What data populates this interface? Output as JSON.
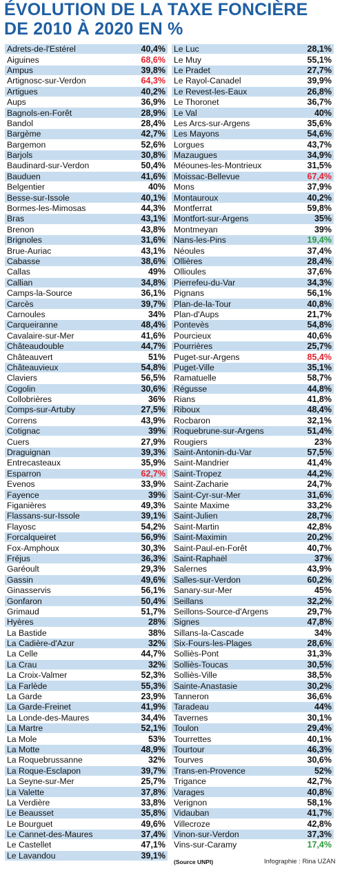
{
  "title": {
    "line1": "ÉVOLUTION DE LA TAXE FONCIÈRE",
    "line2": "DE 2010 À 2020 EN %"
  },
  "colors": {
    "title": "#1f5fa3",
    "shade": "#c7ddef",
    "highlight_high": "#e0222d",
    "highlight_low": "#2e9b3c"
  },
  "left_column": [
    {
      "name": "Adrets-de-l'Estérel",
      "value": "40,4%",
      "shade": true,
      "color": ""
    },
    {
      "name": "Aiguines",
      "value": "68,6%",
      "shade": false,
      "color": "red"
    },
    {
      "name": "Ampus",
      "value": "39,8%",
      "shade": true,
      "color": ""
    },
    {
      "name": "Artignosc-sur-Verdon",
      "value": "64,3%",
      "shade": false,
      "color": "red"
    },
    {
      "name": "Artigues",
      "value": "40,2%",
      "shade": true,
      "color": ""
    },
    {
      "name": "Aups",
      "value": "36,9%",
      "shade": false,
      "color": ""
    },
    {
      "name": "Bagnols-en-Forêt",
      "value": "28,9%",
      "shade": true,
      "color": ""
    },
    {
      "name": "Bandol",
      "value": "28,4%",
      "shade": false,
      "color": ""
    },
    {
      "name": "Bargème",
      "value": "42,7%",
      "shade": true,
      "color": ""
    },
    {
      "name": "Bargemon",
      "value": "52,6%",
      "shade": false,
      "color": ""
    },
    {
      "name": "Barjols",
      "value": "30,8%",
      "shade": true,
      "color": ""
    },
    {
      "name": "Baudinard-sur-Verdon",
      "value": "50,4%",
      "shade": false,
      "color": ""
    },
    {
      "name": "Bauduen",
      "value": "41,6%",
      "shade": true,
      "color": ""
    },
    {
      "name": "Belgentier",
      "value": "40%",
      "shade": false,
      "color": ""
    },
    {
      "name": "Besse-sur-Issole",
      "value": "40,1%",
      "shade": true,
      "color": ""
    },
    {
      "name": "Bormes-les-Mimosas",
      "value": "44,3%",
      "shade": false,
      "color": ""
    },
    {
      "name": "Bras",
      "value": "43,1%",
      "shade": true,
      "color": ""
    },
    {
      "name": "Brenon",
      "value": "43,8%",
      "shade": false,
      "color": ""
    },
    {
      "name": "Brignoles",
      "value": "31,6%",
      "shade": true,
      "color": ""
    },
    {
      "name": "Brue-Auriac",
      "value": "43,1%",
      "shade": false,
      "color": ""
    },
    {
      "name": "Cabasse",
      "value": "38,6%",
      "shade": true,
      "color": ""
    },
    {
      "name": "Callas",
      "value": "49%",
      "shade": false,
      "color": ""
    },
    {
      "name": "Callian",
      "value": "34,8%",
      "shade": true,
      "color": ""
    },
    {
      "name": "Camps-la-Source",
      "value": "36,1%",
      "shade": false,
      "color": ""
    },
    {
      "name": "Carcès",
      "value": "39,7%",
      "shade": true,
      "color": ""
    },
    {
      "name": "Carnoules",
      "value": "34%",
      "shade": false,
      "color": ""
    },
    {
      "name": "Carqueiranne",
      "value": "48,4%",
      "shade": true,
      "color": ""
    },
    {
      "name": "Cavalaire-sur-Mer",
      "value": "41,6%",
      "shade": false,
      "color": ""
    },
    {
      "name": "Châteaudouble",
      "value": "44,7%",
      "shade": true,
      "color": ""
    },
    {
      "name": "Châteauvert",
      "value": "51%",
      "shade": false,
      "color": ""
    },
    {
      "name": "Châteauvieux",
      "value": "54,8%",
      "shade": true,
      "color": ""
    },
    {
      "name": "Claviers",
      "value": "56,5%",
      "shade": false,
      "color": ""
    },
    {
      "name": "Cogolin",
      "value": "30,6%",
      "shade": true,
      "color": ""
    },
    {
      "name": "Collobrières",
      "value": "36%",
      "shade": false,
      "color": ""
    },
    {
      "name": "Comps-sur-Artuby",
      "value": "27,5%",
      "shade": true,
      "color": ""
    },
    {
      "name": "Correns",
      "value": "43,9%",
      "shade": false,
      "color": ""
    },
    {
      "name": "Cotignac",
      "value": "39%",
      "shade": true,
      "color": ""
    },
    {
      "name": "Cuers",
      "value": "27,9%",
      "shade": false,
      "color": ""
    },
    {
      "name": "Draguignan",
      "value": "39,3%",
      "shade": true,
      "color": ""
    },
    {
      "name": "Entrecasteaux",
      "value": "35,9%",
      "shade": false,
      "color": ""
    },
    {
      "name": "Esparron",
      "value": "62,7%",
      "shade": true,
      "color": "red"
    },
    {
      "name": "Evenos",
      "value": "33,9%",
      "shade": false,
      "color": ""
    },
    {
      "name": "Fayence",
      "value": "39%",
      "shade": true,
      "color": ""
    },
    {
      "name": "Figanières",
      "value": "49,3%",
      "shade": false,
      "color": ""
    },
    {
      "name": "Flassans-sur-Issole",
      "value": "39,1%",
      "shade": true,
      "color": ""
    },
    {
      "name": "Flayosc",
      "value": "54,2%",
      "shade": false,
      "color": ""
    },
    {
      "name": "Forcalqueiret",
      "value": "56,9%",
      "shade": true,
      "color": ""
    },
    {
      "name": "Fox-Amphoux",
      "value": "30,3%",
      "shade": false,
      "color": ""
    },
    {
      "name": "Fréjus",
      "value": "36,3%",
      "shade": true,
      "color": ""
    },
    {
      "name": "Garéoult",
      "value": "29,3%",
      "shade": false,
      "color": ""
    },
    {
      "name": "Gassin",
      "value": "49,6%",
      "shade": true,
      "color": ""
    },
    {
      "name": "Ginasservis",
      "value": "56,1%",
      "shade": false,
      "color": ""
    },
    {
      "name": "Gonfaron",
      "value": "50,4%",
      "shade": true,
      "color": ""
    },
    {
      "name": "Grimaud",
      "value": "51,7%",
      "shade": false,
      "color": ""
    },
    {
      "name": "Hyères",
      "value": "28%",
      "shade": true,
      "color": ""
    },
    {
      "name": "La Bastide",
      "value": "38%",
      "shade": false,
      "color": ""
    },
    {
      "name": "La Cadière-d'Azur",
      "value": "32%",
      "shade": true,
      "color": ""
    },
    {
      "name": "La Celle",
      "value": "44,7%",
      "shade": false,
      "color": ""
    },
    {
      "name": "La Crau",
      "value": "32%",
      "shade": true,
      "color": ""
    },
    {
      "name": "La Croix-Valmer",
      "value": "52,3%",
      "shade": false,
      "color": ""
    },
    {
      "name": "La Farlède",
      "value": "55,3%",
      "shade": true,
      "color": ""
    },
    {
      "name": "La Garde",
      "value": "23,9%",
      "shade": false,
      "color": ""
    },
    {
      "name": "La Garde-Freinet",
      "value": "41,9%",
      "shade": true,
      "color": ""
    },
    {
      "name": "La Londe-des-Maures",
      "value": "34,4%",
      "shade": false,
      "color": ""
    },
    {
      "name": "La Martre",
      "value": "52,1%",
      "shade": true,
      "color": ""
    },
    {
      "name": "La Mole",
      "value": "53%",
      "shade": false,
      "color": ""
    },
    {
      "name": "La Motte",
      "value": "48,9%",
      "shade": true,
      "color": ""
    },
    {
      "name": "La Roquebrussanne",
      "value": "32%",
      "shade": false,
      "color": ""
    },
    {
      "name": "La Roque-Esclapon",
      "value": "39,7%",
      "shade": true,
      "color": ""
    },
    {
      "name": "La Seyne-sur-Mer",
      "value": "25,7%",
      "shade": false,
      "color": ""
    },
    {
      "name": "La Valette",
      "value": "37,8%",
      "shade": true,
      "color": ""
    },
    {
      "name": "La Verdière",
      "value": "33,8%",
      "shade": false,
      "color": ""
    },
    {
      "name": "Le Beausset",
      "value": "35,8%",
      "shade": true,
      "color": ""
    },
    {
      "name": "Le Bourguet",
      "value": "49,6%",
      "shade": false,
      "color": ""
    },
    {
      "name": "Le Cannet-des-Maures",
      "value": "37,4%",
      "shade": true,
      "color": ""
    },
    {
      "name": "Le Castellet",
      "value": "47,1%",
      "shade": false,
      "color": ""
    },
    {
      "name": "Le Lavandou",
      "value": "39,1%",
      "shade": true,
      "color": ""
    }
  ],
  "right_column": [
    {
      "name": "Le Luc",
      "value": "28,1%",
      "shade": true,
      "color": ""
    },
    {
      "name": "Le Muy",
      "value": "55,1%",
      "shade": false,
      "color": ""
    },
    {
      "name": "Le Pradet",
      "value": "27,7%",
      "shade": true,
      "color": ""
    },
    {
      "name": "Le Rayol-Canadel",
      "value": "39,9%",
      "shade": false,
      "color": ""
    },
    {
      "name": "Le Revest-les-Eaux",
      "value": "26,8%",
      "shade": true,
      "color": ""
    },
    {
      "name": "Le Thoronet",
      "value": "36,7%",
      "shade": false,
      "color": ""
    },
    {
      "name": "Le Val",
      "value": "40%",
      "shade": true,
      "color": ""
    },
    {
      "name": "Les Arcs-sur-Argens",
      "value": "35,6%",
      "shade": false,
      "color": ""
    },
    {
      "name": "Les Mayons",
      "value": "54,6%",
      "shade": true,
      "color": ""
    },
    {
      "name": "Lorgues",
      "value": "43,7%",
      "shade": false,
      "color": ""
    },
    {
      "name": "Mazaugues",
      "value": "34,9%",
      "shade": true,
      "color": ""
    },
    {
      "name": "Méounes-les-Montrieux",
      "value": "31,5%",
      "shade": false,
      "color": ""
    },
    {
      "name": "Moissac-Bellevue",
      "value": "67,4%",
      "shade": true,
      "color": "red"
    },
    {
      "name": "Mons",
      "value": "37,9%",
      "shade": false,
      "color": ""
    },
    {
      "name": "Montauroux",
      "value": "40,2%",
      "shade": true,
      "color": ""
    },
    {
      "name": "Montferrat",
      "value": "59,8%",
      "shade": false,
      "color": ""
    },
    {
      "name": "Montfort-sur-Argens",
      "value": "35%",
      "shade": true,
      "color": ""
    },
    {
      "name": "Montmeyan",
      "value": "39%",
      "shade": false,
      "color": ""
    },
    {
      "name": "Nans-les-Pins",
      "value": "19,4%",
      "shade": true,
      "color": "green"
    },
    {
      "name": "Néoules",
      "value": "37,4%",
      "shade": false,
      "color": ""
    },
    {
      "name": "Ollières",
      "value": "28,4%",
      "shade": true,
      "color": ""
    },
    {
      "name": "Ollioules",
      "value": "37,6%",
      "shade": false,
      "color": ""
    },
    {
      "name": "Pierrefeu-du-Var",
      "value": "34,3%",
      "shade": true,
      "color": ""
    },
    {
      "name": "Pignans",
      "value": "56,1%",
      "shade": false,
      "color": ""
    },
    {
      "name": "Plan-de-la-Tour",
      "value": "40,8%",
      "shade": true,
      "color": ""
    },
    {
      "name": "Plan-d'Aups",
      "value": "21,7%",
      "shade": false,
      "color": ""
    },
    {
      "name": "Pontevès",
      "value": "54,8%",
      "shade": true,
      "color": ""
    },
    {
      "name": "Pourcieux",
      "value": "40,6%",
      "shade": false,
      "color": ""
    },
    {
      "name": "Pourrières",
      "value": "25,7%",
      "shade": true,
      "color": ""
    },
    {
      "name": "Puget-sur-Argens",
      "value": "85,4%",
      "shade": false,
      "color": "red"
    },
    {
      "name": "Puget-Ville",
      "value": "35,1%",
      "shade": true,
      "color": ""
    },
    {
      "name": "Ramatuelle",
      "value": "58,7%",
      "shade": false,
      "color": ""
    },
    {
      "name": "Régusse",
      "value": "44,8%",
      "shade": true,
      "color": ""
    },
    {
      "name": "Rians",
      "value": "41,8%",
      "shade": false,
      "color": ""
    },
    {
      "name": "Riboux",
      "value": "48,4%",
      "shade": true,
      "color": ""
    },
    {
      "name": "Rocbaron",
      "value": "32,1%",
      "shade": false,
      "color": ""
    },
    {
      "name": "Roquebrune-sur-Argens",
      "value": "51,4%",
      "shade": true,
      "color": ""
    },
    {
      "name": "Rougiers",
      "value": "23%",
      "shade": false,
      "color": ""
    },
    {
      "name": "Saint-Antonin-du-Var",
      "value": "57,5%",
      "shade": true,
      "color": ""
    },
    {
      "name": "Saint-Mandrier",
      "value": "41,4%",
      "shade": false,
      "color": ""
    },
    {
      "name": "Saint-Tropez",
      "value": "44,2%",
      "shade": true,
      "color": ""
    },
    {
      "name": "Saint-Zacharie",
      "value": "24,7%",
      "shade": false,
      "color": ""
    },
    {
      "name": "Saint-Cyr-sur-Mer",
      "value": "31,6%",
      "shade": true,
      "color": ""
    },
    {
      "name": "Sainte Maxime",
      "value": "33,2%",
      "shade": false,
      "color": ""
    },
    {
      "name": "Saint-Julien",
      "value": "28,7%",
      "shade": true,
      "color": ""
    },
    {
      "name": "Saint-Martin",
      "value": "42,8%",
      "shade": false,
      "color": ""
    },
    {
      "name": "Saint-Maximin",
      "value": "20,2%",
      "shade": true,
      "color": ""
    },
    {
      "name": "Saint-Paul-en-Forêt",
      "value": "40,7%",
      "shade": false,
      "color": ""
    },
    {
      "name": "Saint-Raphaël",
      "value": "37%",
      "shade": true,
      "color": ""
    },
    {
      "name": "Salernes",
      "value": "43,9%",
      "shade": false,
      "color": ""
    },
    {
      "name": "Salles-sur-Verdon",
      "value": "60,2%",
      "shade": true,
      "color": ""
    },
    {
      "name": "Sanary-sur-Mer",
      "value": "45%",
      "shade": false,
      "color": ""
    },
    {
      "name": "Seillans",
      "value": "32,2%",
      "shade": true,
      "color": ""
    },
    {
      "name": "Seillons-Source-d'Argens",
      "value": "29,7%",
      "shade": false,
      "color": ""
    },
    {
      "name": "Signes",
      "value": "47,8%",
      "shade": true,
      "color": ""
    },
    {
      "name": "Sillans-la-Cascade",
      "value": "34%",
      "shade": false,
      "color": ""
    },
    {
      "name": "Six-Fours-les-Plages",
      "value": "28,6%",
      "shade": true,
      "color": ""
    },
    {
      "name": "Solliès-Pont",
      "value": "31,3%",
      "shade": false,
      "color": ""
    },
    {
      "name": "Solliès-Toucas",
      "value": "30,5%",
      "shade": true,
      "color": ""
    },
    {
      "name": "Solliès-Ville",
      "value": "38,5%",
      "shade": false,
      "color": ""
    },
    {
      "name": "Sainte-Anastasie",
      "value": "30,2%",
      "shade": true,
      "color": ""
    },
    {
      "name": "Tanneron",
      "value": "36,6%",
      "shade": false,
      "color": ""
    },
    {
      "name": "Taradeau",
      "value": "44%",
      "shade": true,
      "color": ""
    },
    {
      "name": "Tavernes",
      "value": "30,1%",
      "shade": false,
      "color": ""
    },
    {
      "name": "Toulon",
      "value": "29,4%",
      "shade": true,
      "color": ""
    },
    {
      "name": "Tourrettes",
      "value": "40,1%",
      "shade": false,
      "color": ""
    },
    {
      "name": "Tourtour",
      "value": "46,3%",
      "shade": true,
      "color": ""
    },
    {
      "name": "Tourves",
      "value": "30,6%",
      "shade": false,
      "color": ""
    },
    {
      "name": "Trans-en-Provence",
      "value": "52%",
      "shade": true,
      "color": ""
    },
    {
      "name": "Trigance",
      "value": "42,7%",
      "shade": false,
      "color": ""
    },
    {
      "name": "Varages",
      "value": "40,8%",
      "shade": true,
      "color": ""
    },
    {
      "name": "Verignon",
      "value": "58,1%",
      "shade": false,
      "color": ""
    },
    {
      "name": "Vidauban",
      "value": "41,7%",
      "shade": true,
      "color": ""
    },
    {
      "name": "Villecroze",
      "value": "42,8%",
      "shade": false,
      "color": ""
    },
    {
      "name": "Vinon-sur-Verdon",
      "value": "37,3%",
      "shade": true,
      "color": ""
    },
    {
      "name": "Vins-sur-Caramy",
      "value": "17,4%",
      "shade": false,
      "color": "green"
    }
  ],
  "footer": {
    "source": "(Source UNPI)",
    "credit": "Infographie : Rina UZAN"
  }
}
